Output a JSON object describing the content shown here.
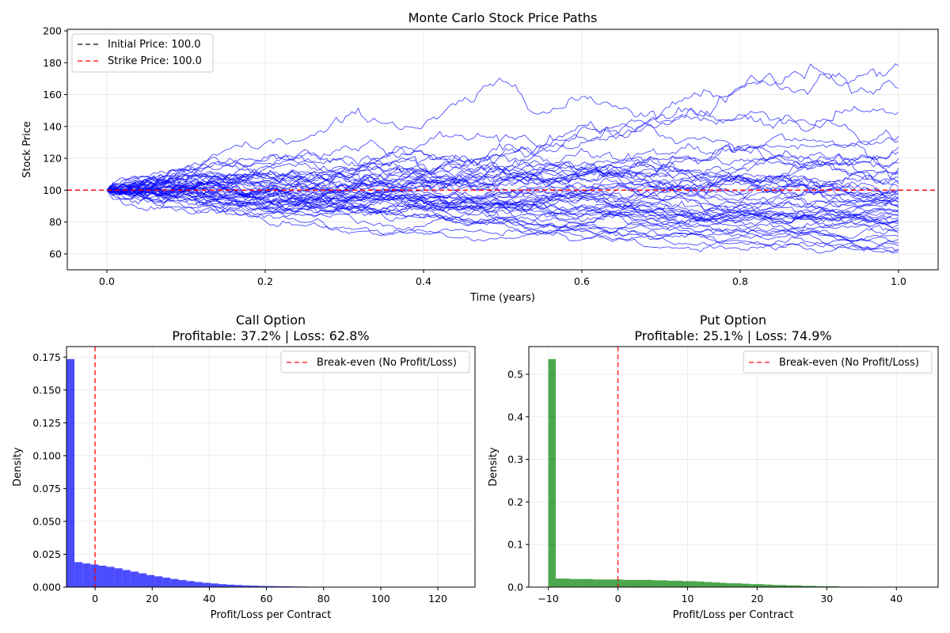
{
  "chart_data": [
    {
      "type": "line",
      "title": "Monte Carlo Stock Price Paths",
      "xlabel": "Time (years)",
      "ylabel": "Stock Price",
      "xlim": [
        -0.05,
        1.05
      ],
      "ylim": [
        50,
        201
      ],
      "xticks": [
        0.0,
        0.2,
        0.4,
        0.6,
        0.8,
        1.0
      ],
      "xtick_labels": [
        "0.0",
        "0.2",
        "0.4",
        "0.6",
        "0.8",
        "1.0"
      ],
      "yticks": [
        60,
        80,
        100,
        120,
        140,
        160,
        180,
        200
      ],
      "ytick_labels": [
        "60",
        "80",
        "100",
        "120",
        "140",
        "160",
        "180",
        "200"
      ],
      "grid": true,
      "legend_position": "top-left",
      "path_count": 50,
      "path_color": "#0000ff",
      "path_endpoints": [
        178,
        164,
        149,
        134,
        131,
        127,
        124,
        120,
        117,
        114,
        112,
        110,
        108,
        106,
        104,
        102,
        101,
        100,
        99,
        98,
        97,
        96,
        95,
        94,
        93,
        92,
        91,
        90,
        89,
        88,
        87,
        86,
        85,
        84,
        83,
        82,
        81,
        80,
        79,
        78,
        76,
        75,
        73,
        71,
        69,
        67,
        65,
        63,
        62,
        61
      ],
      "reference_lines": [
        {
          "name": "Initial Price: 100.0",
          "y": 100,
          "color": "#333333"
        },
        {
          "name": "Strike Price: 100.0",
          "y": 100,
          "color": "#ff0000"
        }
      ]
    },
    {
      "type": "bar",
      "title": "Call Option",
      "subtitle": "Profitable: 37.2% | Loss: 62.8%",
      "xlabel": "Profit/Loss per Contract",
      "ylabel": "Density",
      "xlim": [
        -10,
        133
      ],
      "ylim": [
        0,
        0.183
      ],
      "xticks": [
        0,
        20,
        40,
        60,
        80,
        100,
        120
      ],
      "xtick_labels": [
        "0",
        "20",
        "40",
        "60",
        "80",
        "100",
        "120"
      ],
      "yticks": [
        0.0,
        0.025,
        0.05,
        0.075,
        0.1,
        0.125,
        0.15,
        0.175
      ],
      "ytick_labels": [
        "0.000",
        "0.025",
        "0.050",
        "0.075",
        "0.100",
        "0.125",
        "0.150",
        "0.175"
      ],
      "bin_start": -10,
      "bin_width": 2.8,
      "values": [
        0.1735,
        0.019,
        0.018,
        0.0172,
        0.0163,
        0.0154,
        0.0143,
        0.013,
        0.0118,
        0.0105,
        0.0092,
        0.0082,
        0.0072,
        0.0062,
        0.0054,
        0.0046,
        0.0039,
        0.0033,
        0.0028,
        0.0023,
        0.0019,
        0.0016,
        0.0013,
        0.0011,
        0.0009,
        0.0008,
        0.0007,
        0.0006,
        0.0005,
        0.0004,
        0.0003,
        0.0003,
        0.0002,
        0.0002,
        0.0002,
        0.0001,
        0.0001,
        0.0001,
        0.0001,
        0.0001,
        0.0001,
        0.0001,
        0.0001,
        0.0001,
        0.0001,
        0.0001,
        0.0001,
        0.0001,
        0.0001,
        0.0001
      ],
      "color": "#0000ff",
      "break_even": {
        "name": "Break-even (No Profit/Loss)",
        "x": 0,
        "color": "#ff0000"
      },
      "grid": true,
      "legend_position": "top-right"
    },
    {
      "type": "bar",
      "title": "Put Option",
      "subtitle": "Profitable: 25.1% | Loss: 74.9%",
      "xlabel": "Profit/Loss per Contract",
      "ylabel": "Density",
      "xlim": [
        -12.8,
        46
      ],
      "ylim": [
        0,
        0.565
      ],
      "xticks": [
        -10,
        0,
        10,
        20,
        30,
        40
      ],
      "xtick_labels": [
        "−10",
        "0",
        "10",
        "20",
        "30",
        "40"
      ],
      "yticks": [
        0.0,
        0.1,
        0.2,
        0.3,
        0.4,
        0.5
      ],
      "ytick_labels": [
        "0.0",
        "0.1",
        "0.2",
        "0.3",
        "0.4",
        "0.5"
      ],
      "bin_start": -10,
      "bin_width": 1.07,
      "values": [
        0.5355,
        0.02,
        0.02,
        0.019,
        0.019,
        0.019,
        0.018,
        0.018,
        0.018,
        0.018,
        0.017,
        0.017,
        0.017,
        0.017,
        0.016,
        0.016,
        0.015,
        0.015,
        0.014,
        0.014,
        0.013,
        0.012,
        0.011,
        0.01,
        0.009,
        0.009,
        0.008,
        0.007,
        0.007,
        0.006,
        0.005,
        0.005,
        0.004,
        0.004,
        0.003,
        0.003,
        0.002,
        0.002,
        0.002,
        0.001,
        0.001,
        0.001,
        0.001,
        0.0008,
        0.0006,
        0.0004,
        0.0003,
        0.0002,
        0.0001,
        0.0001
      ],
      "color": "#008000",
      "break_even": {
        "name": "Break-even (No Profit/Loss)",
        "x": 0,
        "color": "#ff0000"
      },
      "grid": true,
      "legend_position": "top-right"
    }
  ]
}
